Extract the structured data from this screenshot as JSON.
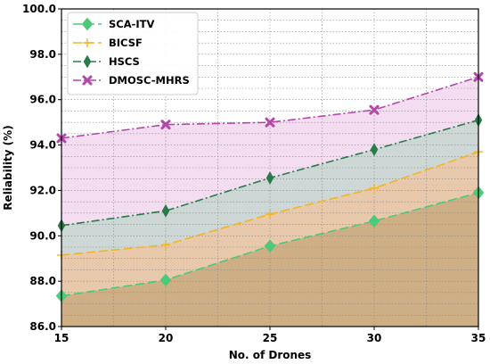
{
  "chart_data": {
    "type": "line",
    "xlabel": "No. of Drones",
    "ylabel": "Reliability (%)",
    "x": [
      15,
      20,
      25,
      30,
      35
    ],
    "xlim": [
      15,
      35
    ],
    "ylim": [
      86.0,
      100.0
    ],
    "xticks": [
      "15",
      "20",
      "25",
      "30",
      "35"
    ],
    "yticks": [
      "86.0",
      "88.0",
      "90.0",
      "92.0",
      "94.0",
      "96.0",
      "98.0",
      "100.0"
    ],
    "grid": true,
    "legend_position": "top-left",
    "series": [
      {
        "name": "SCA-ITV",
        "values": [
          87.35,
          88.05,
          89.55,
          90.65,
          91.9
        ],
        "color": "#4dc97b",
        "fill": "#c9a97c",
        "marker": "diamond",
        "dash": "10,4"
      },
      {
        "name": "BICSF",
        "values": [
          89.15,
          89.6,
          90.95,
          92.1,
          93.7
        ],
        "color": "#f5b523",
        "fill": "#ecc7a3",
        "marker": "plus",
        "dash": "10,4"
      },
      {
        "name": "HSCS",
        "values": [
          90.45,
          91.1,
          92.55,
          93.8,
          95.1
        ],
        "color": "#2a7a4a",
        "fill": "#c6d6d0",
        "marker": "thin-diamond",
        "dash": "9,3,2,3"
      },
      {
        "name": "DMOSC-MHRS",
        "values": [
          94.3,
          94.9,
          95.0,
          95.55,
          97.0
        ],
        "color": "#b348a8",
        "fill": "#f2d6ef",
        "marker": "x",
        "dash": "9,3,2,3"
      }
    ]
  }
}
